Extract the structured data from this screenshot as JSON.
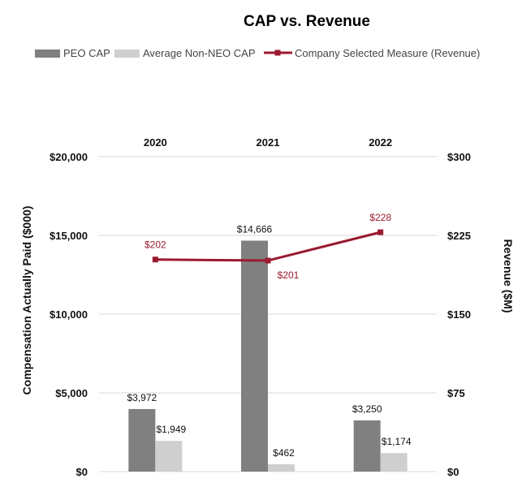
{
  "chart_data": {
    "type": "bar",
    "title": "CAP vs. Revenue",
    "categories": [
      "2020",
      "2021",
      "2022"
    ],
    "series": [
      {
        "name": "PEO CAP",
        "kind": "bar",
        "axis": "left",
        "color": "#808080",
        "values": [
          3972,
          14666,
          3250
        ],
        "labels": [
          "$3,972",
          "$14,666",
          "$3,250"
        ]
      },
      {
        "name": "Average Non-NEO CAP",
        "kind": "bar",
        "axis": "left",
        "color": "#cfcfcf",
        "values": [
          1949,
          462,
          1174
        ],
        "labels": [
          "$1,949",
          "$462",
          "$1,174"
        ]
      },
      {
        "name": "Company Selected Measure (Revenue)",
        "kind": "line",
        "axis": "right",
        "color": "#9b1a2f",
        "values": [
          202,
          201,
          228
        ],
        "labels": [
          "$202",
          "$201",
          "$228"
        ]
      }
    ],
    "left_axis": {
      "title": "Compensation Actually Paid ($000)",
      "ylim": [
        0,
        20000
      ],
      "ticks": [
        0,
        5000,
        10000,
        15000,
        20000
      ],
      "tick_labels": [
        "$0",
        "$5,000",
        "$10,000",
        "$15,000",
        "$20,000"
      ]
    },
    "right_axis": {
      "title": "Revenue ($M)",
      "ylim": [
        0,
        300
      ],
      "ticks": [
        0,
        75,
        150,
        225,
        300
      ],
      "tick_labels": [
        "$0",
        "$75",
        "$150",
        "$225",
        "$300"
      ]
    },
    "grid": true,
    "legend_position": "top"
  }
}
